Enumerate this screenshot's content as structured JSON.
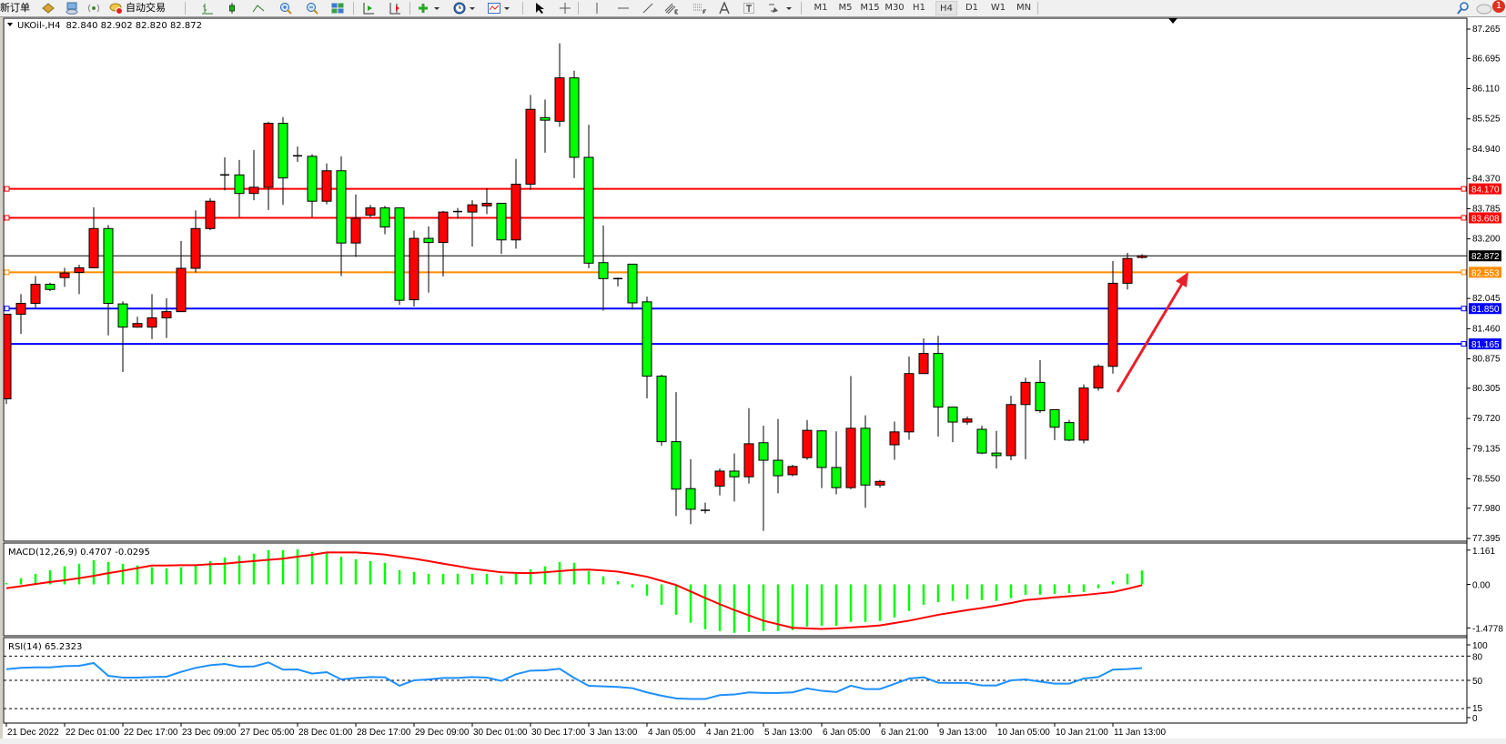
{
  "toolbar": {
    "new_order_label": "新订单",
    "auto_trading_label": "自动交易",
    "timeframes": [
      "M1",
      "M5",
      "M15",
      "M30",
      "H1",
      "H4",
      "D1",
      "W1",
      "MN"
    ],
    "active_timeframe": "H4",
    "notification_count": "1"
  },
  "chart_header": {
    "symbol": "UKOil-,H4",
    "ohlc": "82.840 82.902 82.820 82.872"
  },
  "colors": {
    "bull_candle": "#ff0000",
    "bear_candle": "#00ff00",
    "resistance": "#ff0000",
    "pivot": "#ff8c00",
    "support": "#0000ff",
    "macd_hist": "#00ff00",
    "macd_signal": "#ff0000",
    "rsi": "#1e90ff",
    "annotation_arrow": "#e8202a"
  },
  "chart_data": [
    {
      "type": "candlestick",
      "symbol": "UKOil-",
      "timeframe": "H4",
      "ylim": [
        77.395,
        87.265
      ],
      "y_ticks": [
        "87.265",
        "86.695",
        "86.110",
        "85.525",
        "84.940",
        "84.370",
        "83.785",
        "83.200",
        "82.045",
        "81.460",
        "80.875",
        "80.305",
        "79.720",
        "79.135",
        "78.550",
        "77.980",
        "77.395"
      ],
      "x_tick_labels": [
        "21 Dec 2022",
        "22 Dec 01:00",
        "22 Dec 17:00",
        "23 Dec 09:00",
        "27 Dec 05:00",
        "28 Dec 01:00",
        "28 Dec 17:00",
        "29 Dec 09:00",
        "30 Dec 01:00",
        "30 Dec 17:00",
        "3 Jan 13:00",
        "4 Jan 05:00",
        "4 Jan 21:00",
        "5 Jan 13:00",
        "6 Jan 05:00",
        "6 Jan 21:00",
        "9 Jan 13:00",
        "10 Jan 05:00",
        "10 Jan 21:00",
        "11 Jan 13:00"
      ],
      "ohlc_columns": [
        "open",
        "high",
        "low",
        "close"
      ],
      "ohlc": [
        [
          80.1,
          81.74,
          80.0,
          81.74
        ],
        [
          81.74,
          82.13,
          81.36,
          81.95
        ],
        [
          81.95,
          82.48,
          81.85,
          82.32
        ],
        [
          82.32,
          82.35,
          82.19,
          82.22
        ],
        [
          82.45,
          82.64,
          82.27,
          82.54
        ],
        [
          82.55,
          82.7,
          82.13,
          82.64
        ],
        [
          82.64,
          83.81,
          82.64,
          83.4
        ],
        [
          83.4,
          83.47,
          81.33,
          81.95
        ],
        [
          81.94,
          81.99,
          80.62,
          81.49
        ],
        [
          81.49,
          81.69,
          81.48,
          81.56
        ],
        [
          81.49,
          82.13,
          81.26,
          81.67
        ],
        [
          81.67,
          82.05,
          81.28,
          81.79
        ],
        [
          81.79,
          83.16,
          81.79,
          82.63
        ],
        [
          82.63,
          83.75,
          82.55,
          83.4
        ],
        [
          83.4,
          83.99,
          83.37,
          83.93
        ],
        [
          84.44,
          84.78,
          84.14,
          84.45
        ],
        [
          84.44,
          84.73,
          83.62,
          84.08
        ],
        [
          84.08,
          84.92,
          83.95,
          84.2
        ],
        [
          84.2,
          85.47,
          83.76,
          85.44
        ],
        [
          85.44,
          85.56,
          83.86,
          84.38
        ],
        [
          84.81,
          84.99,
          84.69,
          84.8
        ],
        [
          84.8,
          84.84,
          83.62,
          83.93
        ],
        [
          83.93,
          84.66,
          83.87,
          84.52
        ],
        [
          84.52,
          84.8,
          82.48,
          83.12
        ],
        [
          83.12,
          84.06,
          82.85,
          83.6
        ],
        [
          83.66,
          83.86,
          83.62,
          83.8
        ],
        [
          83.8,
          83.84,
          83.29,
          83.43
        ],
        [
          83.8,
          83.8,
          81.92,
          82.01
        ],
        [
          82.02,
          83.36,
          81.89,
          83.21
        ],
        [
          83.21,
          83.44,
          82.16,
          83.13
        ],
        [
          83.13,
          83.74,
          82.47,
          83.72
        ],
        [
          83.73,
          83.8,
          83.59,
          83.73
        ],
        [
          83.72,
          83.95,
          83.05,
          83.86
        ],
        [
          83.84,
          84.18,
          83.68,
          83.89
        ],
        [
          83.89,
          83.89,
          82.91,
          83.18
        ],
        [
          83.18,
          84.75,
          83.01,
          84.26
        ],
        [
          84.26,
          85.99,
          84.15,
          85.71
        ],
        [
          85.55,
          85.9,
          84.87,
          85.5
        ],
        [
          85.48,
          86.99,
          85.37,
          86.32
        ],
        [
          86.32,
          86.46,
          84.38,
          84.78
        ],
        [
          84.78,
          85.41,
          82.63,
          82.73
        ],
        [
          82.74,
          83.46,
          81.81,
          82.43
        ],
        [
          82.43,
          82.45,
          82.28,
          82.43
        ],
        [
          82.71,
          82.71,
          81.83,
          81.96
        ],
        [
          81.98,
          82.08,
          80.11,
          80.54
        ],
        [
          80.54,
          80.57,
          79.19,
          79.27
        ],
        [
          79.27,
          80.23,
          77.83,
          78.35
        ],
        [
          78.36,
          78.93,
          77.67,
          77.96
        ],
        [
          77.94,
          78.09,
          77.88,
          77.94
        ],
        [
          78.41,
          78.75,
          78.23,
          78.7
        ],
        [
          78.7,
          79.04,
          78.11,
          78.59
        ],
        [
          78.59,
          79.92,
          78.46,
          79.23
        ],
        [
          79.25,
          79.58,
          77.54,
          78.91
        ],
        [
          78.91,
          79.71,
          78.27,
          78.61
        ],
        [
          78.63,
          78.82,
          78.6,
          78.79
        ],
        [
          78.96,
          79.69,
          78.92,
          79.49
        ],
        [
          79.48,
          79.49,
          78.37,
          78.77
        ],
        [
          78.77,
          79.47,
          78.25,
          78.38
        ],
        [
          78.38,
          80.54,
          78.35,
          79.53
        ],
        [
          79.53,
          79.78,
          77.99,
          78.43
        ],
        [
          78.43,
          78.53,
          78.38,
          78.5
        ],
        [
          79.21,
          79.66,
          78.92,
          79.46
        ],
        [
          79.46,
          80.92,
          79.31,
          80.59
        ],
        [
          80.59,
          81.27,
          80.59,
          80.98
        ],
        [
          80.98,
          81.32,
          79.37,
          79.94
        ],
        [
          79.94,
          79.94,
          79.26,
          79.65
        ],
        [
          79.65,
          79.76,
          79.6,
          79.71
        ],
        [
          79.51,
          79.58,
          79.03,
          79.05
        ],
        [
          79.05,
          79.48,
          78.75,
          79.0
        ],
        [
          79.0,
          80.16,
          78.91,
          79.99
        ],
        [
          79.99,
          80.51,
          78.93,
          80.42
        ],
        [
          80.42,
          80.85,
          79.83,
          79.87
        ],
        [
          79.89,
          79.89,
          79.3,
          79.55
        ],
        [
          79.64,
          79.69,
          79.28,
          79.3
        ],
        [
          79.3,
          80.38,
          79.24,
          80.31
        ],
        [
          80.31,
          80.77,
          80.26,
          80.73
        ],
        [
          80.73,
          82.77,
          80.59,
          82.34
        ],
        [
          82.34,
          82.93,
          82.22,
          82.82
        ],
        [
          82.84,
          82.902,
          82.82,
          82.872
        ]
      ],
      "horizontal_lines": [
        {
          "price": 84.17,
          "label": "84.170",
          "color": "#ff0000"
        },
        {
          "price": 83.608,
          "label": "83.608",
          "color": "#ff0000"
        },
        {
          "price": 82.553,
          "label": "82.553",
          "color": "#ff8c00"
        },
        {
          "price": 81.85,
          "label": "81.850",
          "color": "#0000ff"
        },
        {
          "price": 81.165,
          "label": "81.165",
          "color": "#0000ff"
        }
      ],
      "current_price": {
        "price": 82.872,
        "label": "82.872"
      },
      "annotation": {
        "type": "arrow",
        "direction": "up-right",
        "color": "#e8202a"
      }
    },
    {
      "type": "bar+line",
      "title": "MACD(12,26,9) 0.4707 -0.0295",
      "ylim": [
        -1.4778,
        1.161
      ],
      "y_ticks": [
        "1.161",
        "0.00",
        "-1.4778"
      ],
      "histogram": [
        0.05,
        0.21,
        0.36,
        0.48,
        0.61,
        0.7,
        0.82,
        0.76,
        0.7,
        0.64,
        0.58,
        0.54,
        0.58,
        0.64,
        0.79,
        0.91,
        0.98,
        1.04,
        1.16,
        1.16,
        1.19,
        1.1,
        1.1,
        0.94,
        0.85,
        0.79,
        0.73,
        0.48,
        0.42,
        0.36,
        0.36,
        0.36,
        0.36,
        0.36,
        0.3,
        0.36,
        0.51,
        0.61,
        0.76,
        0.73,
        0.45,
        0.27,
        0.11,
        -0.1,
        -0.38,
        -0.69,
        -1.03,
        -1.3,
        -1.52,
        -1.58,
        -1.64,
        -1.61,
        -1.58,
        -1.58,
        -1.55,
        -1.43,
        -1.4,
        -1.4,
        -1.27,
        -1.27,
        -1.24,
        -1.12,
        -0.9,
        -0.69,
        -0.6,
        -0.56,
        -0.5,
        -0.53,
        -0.56,
        -0.47,
        -0.35,
        -0.35,
        -0.32,
        -0.29,
        -0.26,
        -0.13,
        0.11,
        0.36,
        0.4707
      ],
      "signal": [
        -0.13,
        -0.06,
        0.01,
        0.08,
        0.14,
        0.21,
        0.29,
        0.38,
        0.46,
        0.55,
        0.64,
        0.64,
        0.65,
        0.65,
        0.68,
        0.7,
        0.75,
        0.79,
        0.83,
        0.87,
        0.94,
        1.0,
        1.08,
        1.08,
        1.08,
        1.05,
        1.01,
        0.94,
        0.87,
        0.79,
        0.7,
        0.62,
        0.53,
        0.47,
        0.41,
        0.39,
        0.38,
        0.41,
        0.45,
        0.49,
        0.5,
        0.47,
        0.43,
        0.35,
        0.26,
        0.12,
        -0.02,
        -0.24,
        -0.46,
        -0.67,
        -0.87,
        -1.05,
        -1.23,
        -1.35,
        -1.47,
        -1.49,
        -1.51,
        -1.49,
        -1.46,
        -1.43,
        -1.39,
        -1.31,
        -1.23,
        -1.13,
        -1.03,
        -0.95,
        -0.87,
        -0.8,
        -0.72,
        -0.63,
        -0.53,
        -0.49,
        -0.44,
        -0.4,
        -0.36,
        -0.31,
        -0.26,
        -0.15,
        -0.0295
      ]
    },
    {
      "type": "line",
      "title": "RSI(14) 65.2323",
      "ylim": [
        0,
        100
      ],
      "y_ticks": [
        "100",
        "80",
        "50",
        "15",
        "0"
      ],
      "levels": [
        80,
        50,
        15
      ],
      "values": [
        63.8,
        65.4,
        66,
        66,
        67.6,
        68,
        71.4,
        55.6,
        53.4,
        53.4,
        54.1,
        54.5,
        60.5,
        65.4,
        68.7,
        70.2,
        66.9,
        67.2,
        72.2,
        63.2,
        63.5,
        58.3,
        60.1,
        51.1,
        53,
        54.1,
        53.8,
        43.3,
        50,
        51.1,
        53,
        53,
        54.1,
        53.4,
        49.3,
        57.5,
        62,
        62.4,
        64.3,
        53,
        43.3,
        42.6,
        41.8,
        40.3,
        35.1,
        31,
        27.6,
        26.9,
        26.9,
        31.7,
        32.5,
        35.1,
        34.4,
        34.4,
        35.1,
        40,
        37,
        35.5,
        43.3,
        39.2,
        39.2,
        45.6,
        52.3,
        53.8,
        47.1,
        46.7,
        46.7,
        43.7,
        43.7,
        50,
        51.1,
        48.5,
        45.9,
        45.9,
        52.3,
        54.1,
        63.2,
        63.9,
        65.2323
      ]
    }
  ]
}
